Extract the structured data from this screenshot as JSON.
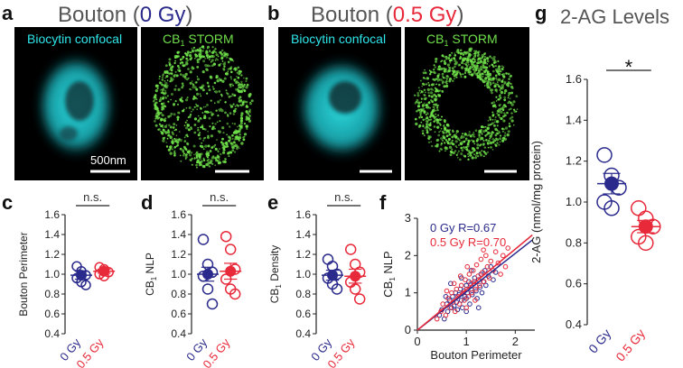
{
  "panel_letters": {
    "a": "a",
    "b": "b",
    "c": "c",
    "d": "d",
    "e": "e",
    "f": "f",
    "g": "g"
  },
  "titles": {
    "a_prefix": "Bouton (",
    "a_dose": "0 Gy",
    "a_suffix": ")",
    "b_prefix": "Bouton (",
    "b_dose": "0.5 Gy",
    "b_suffix": ")",
    "g": "2-AG Levels"
  },
  "micrograph_labels": {
    "biocytin": "Biocytin confocal",
    "storm_cb": "CB",
    "storm_sub": "1",
    "storm_rest": " STORM",
    "scale_bar": "500nm"
  },
  "colors": {
    "gy0": "#2a2a8c",
    "gy05": "#e8293a",
    "cyan": "#2ee6ea",
    "green": "#6fe04a"
  },
  "chart_data": [
    {
      "panel": "c",
      "type": "scatter",
      "ylabel": "Bouton Perimeter",
      "categories": [
        "0 Gy",
        "0.5 Gy"
      ],
      "ylim": [
        0.4,
        1.6
      ],
      "yticks": [
        "0.4",
        "0.6",
        "0.8",
        "1.0",
        "1.2",
        "1.4",
        "1.6"
      ],
      "significance": "n.s.",
      "series": [
        {
          "name": "0 Gy",
          "mean": 0.99,
          "sem": 0.04,
          "points": [
            1.08,
            1.03,
            0.99,
            0.96,
            0.92,
            0.89
          ]
        },
        {
          "name": "0.5 Gy",
          "mean": 1.03,
          "sem": 0.02,
          "points": [
            1.07,
            1.05,
            1.02,
            1.0,
            0.98
          ]
        }
      ]
    },
    {
      "panel": "d",
      "type": "scatter",
      "ylabel_main": "CB",
      "ylabel_sub": "1",
      "ylabel_rest": " NLP",
      "categories": [
        "0 Gy",
        "0.5 Gy"
      ],
      "ylim": [
        0.4,
        1.6
      ],
      "yticks": [
        "0.4",
        "0.6",
        "0.8",
        "1.0",
        "1.2",
        "1.4",
        "1.6"
      ],
      "significance": "n.s.",
      "series": [
        {
          "name": "0 Gy",
          "mean": 1.0,
          "sem": 0.07,
          "points": [
            1.35,
            1.1,
            1.02,
            0.98,
            0.85,
            0.7
          ]
        },
        {
          "name": "0.5 Gy",
          "mean": 1.03,
          "sem": 0.08,
          "points": [
            1.38,
            1.25,
            1.05,
            0.95,
            0.85,
            0.8
          ]
        }
      ]
    },
    {
      "panel": "e",
      "type": "scatter",
      "ylabel_main": "CB",
      "ylabel_sub": "1",
      "ylabel_rest": " Density",
      "categories": [
        "0 Gy",
        "0.5 Gy"
      ],
      "ylim": [
        0.4,
        1.6
      ],
      "yticks": [
        "0.4",
        "0.6",
        "0.8",
        "1.0",
        "1.2",
        "1.4",
        "1.6"
      ],
      "significance": "n.s.",
      "series": [
        {
          "name": "0 Gy",
          "mean": 0.99,
          "sem": 0.05,
          "points": [
            1.15,
            1.08,
            1.0,
            0.96,
            0.9,
            0.85
          ]
        },
        {
          "name": "0.5 Gy",
          "mean": 0.98,
          "sem": 0.07,
          "points": [
            1.25,
            1.1,
            1.02,
            0.92,
            0.85,
            0.75
          ]
        }
      ]
    },
    {
      "panel": "f",
      "type": "scatter",
      "xlabel": "Bouton Perimeter",
      "ylabel_main": "CB",
      "ylabel_sub": "1",
      "ylabel_rest": " NLP",
      "xlim": [
        0,
        2.4
      ],
      "ylim": [
        0,
        3
      ],
      "xticks": [
        "0",
        "1",
        "2"
      ],
      "yticks": [
        "0",
        "1",
        "2",
        "3"
      ],
      "legend": [
        {
          "name": "0 Gy R=0.67",
          "series": "0 Gy"
        },
        {
          "name": "0.5 Gy R=0.70",
          "series": "0.5 Gy"
        }
      ],
      "fit_lines": [
        {
          "series": "0 Gy",
          "slope": 1.05,
          "intercept": -0.05
        },
        {
          "series": "0.5 Gy",
          "slope": 1.15,
          "intercept": -0.15
        }
      ],
      "series": [
        {
          "name": "0 Gy",
          "points": [
            [
              0.45,
              0.4
            ],
            [
              0.5,
              0.55
            ],
            [
              0.55,
              0.3
            ],
            [
              0.6,
              0.7
            ],
            [
              0.62,
              0.5
            ],
            [
              0.66,
              0.8
            ],
            [
              0.7,
              0.6
            ],
            [
              0.72,
              0.9
            ],
            [
              0.75,
              0.65
            ],
            [
              0.78,
              1.0
            ],
            [
              0.8,
              0.75
            ],
            [
              0.82,
              0.55
            ],
            [
              0.85,
              0.95
            ],
            [
              0.88,
              1.1
            ],
            [
              0.9,
              0.8
            ],
            [
              0.92,
              0.6
            ],
            [
              0.95,
              1.05
            ],
            [
              0.97,
              0.9
            ],
            [
              1.0,
              1.2
            ],
            [
              1.0,
              0.85
            ],
            [
              1.02,
              1.0
            ],
            [
              1.05,
              1.3
            ],
            [
              1.07,
              0.7
            ],
            [
              1.1,
              1.1
            ],
            [
              1.12,
              0.95
            ],
            [
              1.15,
              1.25
            ],
            [
              1.17,
              1.4
            ],
            [
              1.2,
              1.05
            ],
            [
              1.22,
              0.85
            ],
            [
              1.25,
              1.35
            ],
            [
              1.28,
              1.15
            ],
            [
              1.3,
              1.5
            ],
            [
              1.32,
              1.0
            ],
            [
              1.35,
              1.3
            ],
            [
              1.38,
              1.6
            ],
            [
              1.4,
              1.2
            ],
            [
              1.45,
              1.45
            ],
            [
              1.5,
              1.7
            ],
            [
              1.55,
              1.35
            ],
            [
              1.6,
              1.55
            ],
            [
              0.68,
              1.25
            ],
            [
              0.9,
              1.4
            ],
            [
              1.1,
              1.6
            ],
            [
              1.25,
              0.6
            ],
            [
              0.58,
              0.9
            ],
            [
              1.0,
              0.5
            ]
          ]
        },
        {
          "name": "0.5 Gy",
          "points": [
            [
              0.4,
              0.3
            ],
            [
              0.48,
              0.5
            ],
            [
              0.52,
              0.7
            ],
            [
              0.58,
              0.4
            ],
            [
              0.63,
              0.85
            ],
            [
              0.67,
              0.6
            ],
            [
              0.7,
              1.0
            ],
            [
              0.73,
              0.75
            ],
            [
              0.77,
              0.5
            ],
            [
              0.8,
              1.1
            ],
            [
              0.83,
              0.9
            ],
            [
              0.86,
              0.7
            ],
            [
              0.9,
              1.2
            ],
            [
              0.93,
              1.0
            ],
            [
              0.96,
              0.8
            ],
            [
              0.98,
              1.35
            ],
            [
              1.01,
              1.1
            ],
            [
              1.04,
              0.9
            ],
            [
              1.06,
              1.5
            ],
            [
              1.09,
              1.25
            ],
            [
              1.11,
              1.0
            ],
            [
              1.14,
              1.6
            ],
            [
              1.16,
              1.3
            ],
            [
              1.19,
              1.1
            ],
            [
              1.21,
              1.75
            ],
            [
              1.24,
              1.45
            ],
            [
              1.27,
              1.2
            ],
            [
              1.3,
              1.9
            ],
            [
              1.33,
              1.55
            ],
            [
              1.36,
              1.3
            ],
            [
              1.4,
              2.0
            ],
            [
              1.43,
              1.7
            ],
            [
              1.47,
              1.4
            ],
            [
              1.5,
              1.85
            ],
            [
              1.55,
              1.6
            ],
            [
              1.6,
              2.1
            ],
            [
              1.65,
              1.8
            ],
            [
              1.7,
              1.5
            ],
            [
              1.75,
              2.0
            ],
            [
              1.8,
              1.7
            ],
            [
              1.85,
              2.2
            ],
            [
              0.88,
              1.45
            ],
            [
              1.02,
              1.7
            ],
            [
              1.18,
              0.8
            ],
            [
              0.75,
              1.25
            ],
            [
              1.35,
              2.15
            ],
            [
              1.0,
              0.6
            ],
            [
              0.6,
              1.05
            ]
          ]
        }
      ]
    },
    {
      "panel": "g",
      "type": "scatter",
      "title": "2-AG Levels",
      "ylabel": "2-AG (nmol/mg protein)",
      "categories": [
        "0 Gy",
        "0.5 Gy"
      ],
      "ylim": [
        0.4,
        1.6
      ],
      "yticks": [
        "0.4",
        "0.6",
        "0.8",
        "1.0",
        "1.2",
        "1.4",
        "1.6"
      ],
      "significance": "*",
      "series": [
        {
          "name": "0 Gy",
          "mean": 1.09,
          "sem": 0.05,
          "points": [
            1.23,
            1.13,
            1.07,
            1.0,
            0.97
          ]
        },
        {
          "name": "0.5 Gy",
          "mean": 0.88,
          "sem": 0.03,
          "points": [
            0.97,
            0.92,
            0.88,
            0.83,
            0.8
          ]
        }
      ]
    }
  ]
}
